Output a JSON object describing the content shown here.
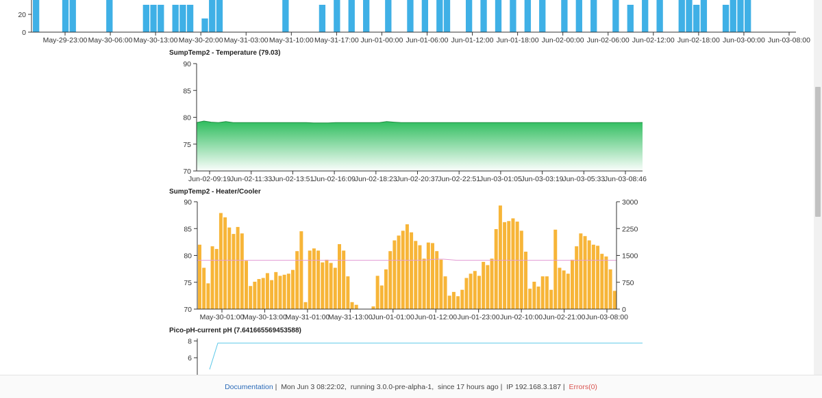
{
  "chart_data": [
    {
      "type": "bar",
      "title": "",
      "ylim": [
        0,
        40
      ],
      "yticks": [
        "0",
        "20"
      ],
      "color": "#3fb0e6",
      "x_tick_labels": [
        "May-29-23:00",
        "May-30-06:00",
        "May-30-13:00",
        "May-30-20:00",
        "May-31-03:00",
        "May-31-10:00",
        "May-31-17:00",
        "Jun-01-00:00",
        "Jun-01-06:00",
        "Jun-01-12:00",
        "Jun-01-18:00",
        "Jun-02-00:00",
        "Jun-02-06:00",
        "Jun-02-12:00",
        "Jun-02-18:00",
        "Jun-03-00:00",
        "Jun-03-08:00"
      ],
      "values": [
        40,
        0,
        0,
        0,
        40,
        40,
        0,
        0,
        0,
        0,
        40,
        0,
        0,
        0,
        0,
        20,
        20,
        20,
        0,
        20,
        20,
        20,
        0,
        10,
        40,
        40,
        0,
        0,
        0,
        0,
        0,
        0,
        0,
        0,
        40,
        0,
        0,
        0,
        0,
        20,
        0,
        40,
        0,
        40,
        0,
        40,
        0,
        0,
        40,
        0,
        0,
        40,
        0,
        40,
        0,
        40,
        40,
        0,
        0,
        40,
        0,
        40,
        0,
        40,
        0,
        40,
        0,
        40,
        0,
        40,
        0,
        0,
        40,
        0,
        40,
        0,
        40,
        0,
        0,
        40,
        0,
        20,
        0,
        40,
        0,
        40,
        0,
        0,
        40,
        40,
        20,
        40,
        0,
        0,
        20,
        40,
        40,
        40,
        0,
        0,
        0,
        0,
        0,
        0
      ]
    },
    {
      "type": "area",
      "title": "SumpTemp2 - Temperature (79.03)",
      "ylim": [
        70,
        90
      ],
      "yticks": [
        "70",
        "75",
        "80",
        "85",
        "90"
      ],
      "x_tick_labels": [
        "Jun-02-09:19",
        "Jun-02-11:33",
        "Jun-02-13:51",
        "Jun-02-16:09",
        "Jun-02-18:23",
        "Jun-02-20:37",
        "Jun-02-22:51",
        "Jun-03-01:05",
        "Jun-03-03:19",
        "Jun-03-05:33",
        "Jun-03-08:46"
      ],
      "fill_top": "#2fbd5e",
      "stroke": "#1f8f42",
      "values": [
        79.0,
        79.3,
        79.1,
        79.0,
        79.2,
        79.0,
        79.0,
        79.0,
        79.0,
        79.0,
        79.0,
        79.0,
        79.0,
        79.0,
        79.0,
        79.0,
        78.95,
        78.95,
        78.95,
        79.0,
        79.0,
        79.0,
        79.0,
        79.0,
        79.0,
        79.0,
        79.2,
        79.1,
        79.0,
        79.0,
        79.0,
        79.0,
        79.0,
        79.0,
        79.0,
        79.0,
        79.0,
        79.0,
        79.0,
        79.0,
        79.0,
        79.0,
        79.0,
        79.0,
        79.0,
        79.0,
        79.0,
        79.0,
        79.0,
        79.0,
        79.0,
        79.0,
        79.0,
        79.0,
        79.0,
        79.0,
        79.0,
        79.0,
        79.0,
        79.0,
        79.0,
        79.03
      ]
    },
    {
      "type": "bar",
      "title": "SumpTemp2 - Heater/Cooler",
      "ylim": [
        70,
        90
      ],
      "yticks": [
        "70",
        "75",
        "80",
        "85",
        "90"
      ],
      "y2lim": [
        0,
        3000
      ],
      "y2ticks": [
        "0",
        "750",
        "1500",
        "2250",
        "3000"
      ],
      "color": "#f7b538",
      "line_color": "#e39ad3",
      "x_tick_labels": [
        "May-30-01:00",
        "May-30-13:00",
        "May-31-01:00",
        "May-31-13:00",
        "Jun-01-01:00",
        "Jun-01-12:00",
        "Jun-01-23:00",
        "Jun-02-10:00",
        "Jun-02-21:00",
        "Jun-03-08:00"
      ],
      "values": [
        82,
        77.7,
        74.8,
        81.7,
        81.2,
        87.9,
        87.1,
        85.2,
        84,
        85.3,
        84.1,
        79,
        74.3,
        75.1,
        75.6,
        75.8,
        76.7,
        75.4,
        76.9,
        76.2,
        76.4,
        76.6,
        77.3,
        80.8,
        84.5,
        71.3,
        80.9,
        81.3,
        80.9,
        78.7,
        79.2,
        78.6,
        77.7,
        82.1,
        80.9,
        76.1,
        71.3,
        70.8,
        70,
        70,
        70,
        70.5,
        76.2,
        74.4,
        77.4,
        80.8,
        82.8,
        83.7,
        84.6,
        85.8,
        84.3,
        82.7,
        81.9,
        79.4,
        82.4,
        82.3,
        80.8,
        79.2,
        76.1,
        72.5,
        73.2,
        72.4,
        73.6,
        75.8,
        76.6,
        77.1,
        76.2,
        78.8,
        78.2,
        79.4,
        84.9,
        89.3,
        86.2,
        86.4,
        86.9,
        86.3,
        84.6,
        80.7,
        73.8,
        75.1,
        74.2,
        76.1,
        76.1,
        73.6,
        84.8,
        77.7,
        77.2,
        76.6,
        79.2,
        81.7,
        84.1,
        83.6,
        82.8,
        82,
        81.8,
        80.3,
        79.8,
        77.4,
        73.4
      ],
      "line_values": [
        79.1,
        79.1,
        79.1,
        79.1,
        79.1,
        79.1,
        79.1,
        79.1,
        79.1,
        79.1,
        79.1,
        79.1,
        79.1,
        79.1,
        79.1,
        79.1,
        79.1,
        79.1,
        79.1,
        79.1,
        79.1,
        79.1,
        79.1,
        79.1,
        79.1,
        79.1,
        79.1,
        79.1,
        79.1,
        79.1,
        79.1,
        79.1,
        79.1,
        79.1,
        79.1,
        79.2,
        79.3,
        79.3,
        79.2,
        79.1,
        79.1,
        79.1,
        79.1,
        79.1,
        79.1,
        79.1,
        79.1,
        79.1,
        79.1,
        79.1,
        79.1,
        79.1,
        79.1,
        79.1,
        79.1,
        79.1,
        79.1,
        79.1,
        79.1,
        79.1,
        79.1,
        79.1,
        79.1,
        79.1
      ]
    },
    {
      "type": "line",
      "title": "Pico-pH-current pH (7.641665569453588)",
      "ylim": [
        3.8,
        8.3
      ],
      "yticks": [
        "6",
        "8"
      ],
      "color": "#5bc8e8",
      "values": [
        4.6,
        7.75,
        7.75,
        7.75,
        7.75,
        7.75,
        7.75,
        7.75,
        7.75,
        7.75,
        7.75,
        7.75,
        7.75,
        7.75,
        7.75,
        7.75,
        7.75,
        7.75,
        7.75,
        7.75
      ]
    }
  ],
  "footer": {
    "documentation": "Documentation",
    "sep1": " |  ",
    "status": "Mon Jun 3 08:22:02,  running 3.0.0-pre-alpha-1,  since 17 hours ago",
    "sep2": " |  ",
    "ip": "IP 192.168.3.187",
    "sep3": " |  ",
    "errors": "Errors(0)"
  }
}
